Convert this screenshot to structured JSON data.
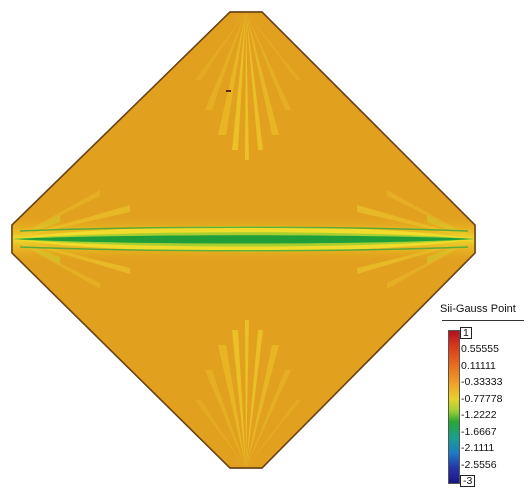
{
  "legend": {
    "title": "Sii-Gauss Point",
    "ticks": [
      "1",
      "0.55555",
      "0.11111",
      "-0.33333",
      "-0.77778",
      "-1.2222",
      "-1.6667",
      "-2.1111",
      "-2.5556",
      "-3"
    ]
  },
  "colors": {
    "background_field": "#e2a21e",
    "outline": "#6b4418",
    "band_yellow": "#f2dd2c",
    "band_green": "#1f9e3a"
  }
}
